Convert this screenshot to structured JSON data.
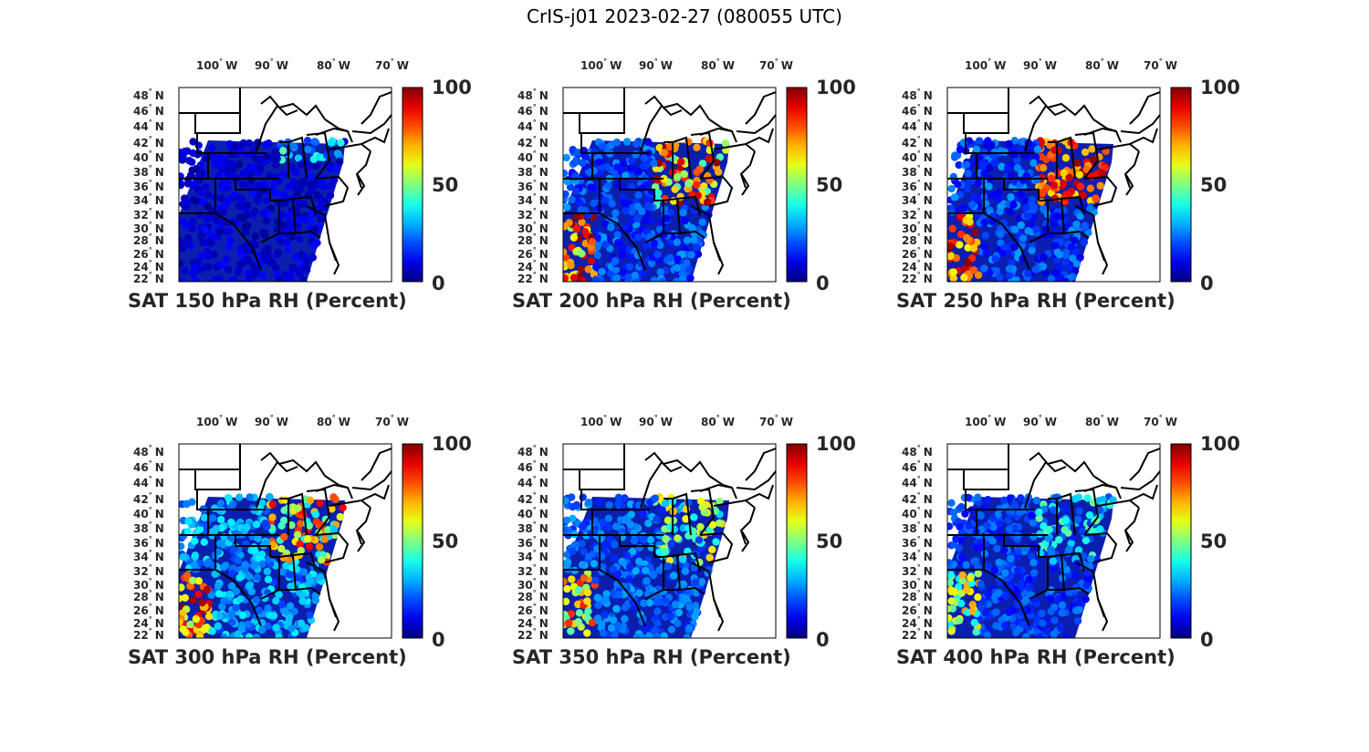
{
  "title": "CrIS-j01 2023-02-27 (080055 UTC)",
  "lon_labels": [
    "100",
    "90",
    "80",
    "70"
  ],
  "lon_suffix": "W",
  "lat_labels": [
    "48",
    "46",
    "44",
    "42",
    "40",
    "38",
    "36",
    "34",
    "32",
    "30",
    "28",
    "26",
    "24",
    "22"
  ],
  "lat_suffix": "N",
  "colorbar": {
    "min": 0,
    "max": 100,
    "ticks": [
      "100",
      "50",
      "0"
    ],
    "colormap": "jet"
  },
  "panels": [
    {
      "title": "SAT 150 hPa RH (Percent)",
      "level": 150,
      "moisture": "low"
    },
    {
      "title": "SAT 200 hPa RH (Percent)",
      "level": 200,
      "moisture": "high"
    },
    {
      "title": "SAT 250 hPa RH (Percent)",
      "level": 250,
      "moisture": "very-high"
    },
    {
      "title": "SAT 300 hPa RH (Percent)",
      "level": 300,
      "moisture": "medium"
    },
    {
      "title": "SAT 350 hPa RH (Percent)",
      "level": 350,
      "moisture": "medium-low"
    },
    {
      "title": "SAT 400 hPa RH (Percent)",
      "level": 400,
      "moisture": "low-medium"
    }
  ]
}
